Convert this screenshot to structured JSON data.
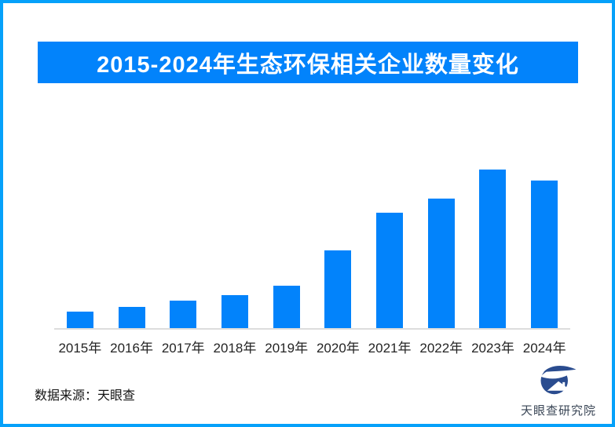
{
  "page": {
    "background_color": "#FFFFFF",
    "border_color": "#05A1FA"
  },
  "header": {
    "title": "2015-2024年生态环保相关企业数量变化",
    "bg_color": "#0283FB",
    "text_color": "#FFFFFF"
  },
  "chart_data": {
    "type": "bar",
    "title": "2015-2024年生态环保相关企业数量变化",
    "categories": [
      "2015年",
      "2016年",
      "2017年",
      "2018年",
      "2019年",
      "2020年",
      "2021年",
      "2022年",
      "2023年",
      "2024年"
    ],
    "values": [
      21,
      27,
      35,
      42,
      54,
      99,
      147,
      165,
      202,
      188
    ],
    "values_relative_to_max": [
      10.4,
      13.4,
      17.3,
      20.8,
      26.7,
      49.0,
      72.8,
      81.7,
      100.0,
      93.1
    ],
    "xlabel": "",
    "ylabel": "",
    "ylim": [
      0,
      210
    ],
    "grid": false,
    "legend": "none",
    "bar_color": "#0283FB",
    "axis_line_color": "#DDDDDD",
    "tick_label_color": "#242424"
  },
  "footer": {
    "source_label": "数据来源：天眼查"
  },
  "logo": {
    "text": "天眼查研究院",
    "icon": "tianyancha-eye-house-icon",
    "icon_color": "#2A4C8F",
    "text_color": "#3A4656"
  }
}
